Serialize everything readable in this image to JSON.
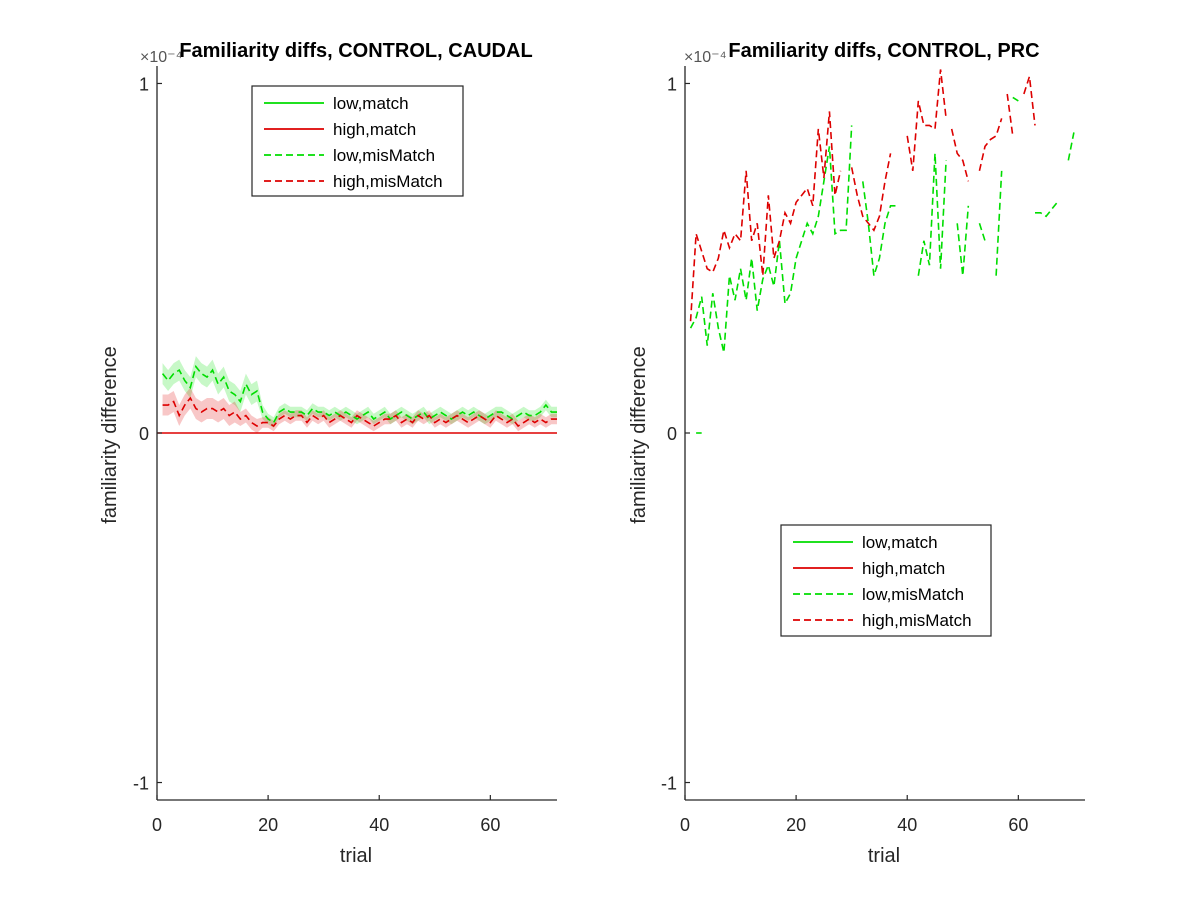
{
  "chart_data": [
    {
      "type": "line",
      "title": "Familiarity diffs, CONTROL, CAUDAL",
      "xlabel": "trial",
      "ylabel": "familiarity difference",
      "xlim": [
        0,
        72
      ],
      "ylim": [
        -1.05,
        1.05
      ],
      "xticks": [
        "0",
        "20",
        "40",
        "60"
      ],
      "yticks": [
        "-1",
        "0",
        "1"
      ],
      "y_exponent_label": "×10⁻⁴",
      "legend_position": "top-center",
      "legend": [
        "low,match",
        "high,match",
        "low,misMatch",
        "high,misMatch"
      ],
      "series": [
        {
          "name": "low,match",
          "style": "solid",
          "color": "#00dd00",
          "x": [],
          "y": []
        },
        {
          "name": "high,match",
          "style": "solid",
          "color": "#dd0000",
          "x": [
            0,
            72
          ],
          "y": [
            0,
            0
          ]
        },
        {
          "name": "low,misMatch",
          "style": "dashed",
          "color": "#00dd00",
          "band": true,
          "x": [
            1,
            2,
            3,
            4,
            5,
            6,
            7,
            8,
            9,
            10,
            11,
            12,
            13,
            14,
            15,
            16,
            17,
            18,
            19,
            20,
            21,
            22,
            23,
            24,
            25,
            26,
            27,
            28,
            29,
            30,
            31,
            32,
            33,
            34,
            35,
            36,
            37,
            38,
            39,
            40,
            41,
            42,
            43,
            44,
            45,
            46,
            47,
            48,
            49,
            50,
            51,
            52,
            53,
            54,
            55,
            56,
            57,
            58,
            59,
            60,
            61,
            62,
            63,
            64,
            65,
            66,
            67,
            68,
            69,
            70,
            71,
            72
          ],
          "y": [
            0.17,
            0.15,
            0.17,
            0.18,
            0.15,
            0.13,
            0.19,
            0.17,
            0.16,
            0.18,
            0.14,
            0.16,
            0.12,
            0.11,
            0.09,
            0.14,
            0.11,
            0.12,
            0.06,
            0.04,
            0.03,
            0.06,
            0.07,
            0.06,
            0.06,
            0.06,
            0.05,
            0.07,
            0.06,
            0.06,
            0.05,
            0.06,
            0.05,
            0.06,
            0.05,
            0.04,
            0.05,
            0.06,
            0.04,
            0.05,
            0.06,
            0.04,
            0.05,
            0.06,
            0.05,
            0.04,
            0.05,
            0.06,
            0.04,
            0.05,
            0.06,
            0.05,
            0.04,
            0.05,
            0.06,
            0.05,
            0.06,
            0.05,
            0.04,
            0.05,
            0.06,
            0.06,
            0.05,
            0.04,
            0.05,
            0.06,
            0.05,
            0.05,
            0.06,
            0.08,
            0.06,
            0.06
          ],
          "err": [
            0.03,
            0.03,
            0.03,
            0.03,
            0.03,
            0.03,
            0.03,
            0.03,
            0.03,
            0.03,
            0.03,
            0.03,
            0.03,
            0.03,
            0.03,
            0.03,
            0.03,
            0.03,
            0.02,
            0.015,
            0.015,
            0.015,
            0.015,
            0.015,
            0.015,
            0.015,
            0.015,
            0.015,
            0.015,
            0.015,
            0.015,
            0.015,
            0.015,
            0.015,
            0.015,
            0.015,
            0.015,
            0.015,
            0.015,
            0.015,
            0.015,
            0.015,
            0.015,
            0.015,
            0.015,
            0.015,
            0.015,
            0.015,
            0.015,
            0.015,
            0.015,
            0.015,
            0.015,
            0.015,
            0.015,
            0.015,
            0.015,
            0.015,
            0.015,
            0.015,
            0.015,
            0.015,
            0.015,
            0.015,
            0.015,
            0.015,
            0.015,
            0.015,
            0.015,
            0.015,
            0.015,
            0.015
          ]
        },
        {
          "name": "high,misMatch",
          "style": "dashed",
          "color": "#dd0000",
          "band": true,
          "x": [
            1,
            2,
            3,
            4,
            5,
            6,
            7,
            8,
            9,
            10,
            11,
            12,
            13,
            14,
            15,
            16,
            17,
            18,
            19,
            20,
            21,
            22,
            23,
            24,
            25,
            26,
            27,
            28,
            29,
            30,
            31,
            32,
            33,
            34,
            35,
            36,
            37,
            38,
            39,
            40,
            41,
            42,
            43,
            44,
            45,
            46,
            47,
            48,
            49,
            50,
            51,
            52,
            53,
            54,
            55,
            56,
            57,
            58,
            59,
            60,
            61,
            62,
            63,
            64,
            65,
            66,
            67,
            68,
            69,
            70,
            71,
            72
          ],
          "y": [
            0.08,
            0.08,
            0.09,
            0.05,
            0.08,
            0.1,
            0.07,
            0.06,
            0.07,
            0.07,
            0.06,
            0.07,
            0.05,
            0.06,
            0.04,
            0.05,
            0.03,
            0.02,
            0.03,
            0.03,
            0.02,
            0.04,
            0.05,
            0.04,
            0.05,
            0.05,
            0.03,
            0.05,
            0.04,
            0.05,
            0.03,
            0.04,
            0.05,
            0.04,
            0.03,
            0.05,
            0.04,
            0.03,
            0.02,
            0.03,
            0.04,
            0.04,
            0.05,
            0.03,
            0.04,
            0.03,
            0.05,
            0.04,
            0.05,
            0.03,
            0.04,
            0.03,
            0.04,
            0.05,
            0.04,
            0.03,
            0.04,
            0.05,
            0.04,
            0.03,
            0.05,
            0.04,
            0.03,
            0.04,
            0.02,
            0.03,
            0.04,
            0.03,
            0.04,
            0.03,
            0.04,
            0.04
          ],
          "err": [
            0.03,
            0.03,
            0.03,
            0.03,
            0.03,
            0.03,
            0.03,
            0.03,
            0.03,
            0.03,
            0.03,
            0.03,
            0.03,
            0.03,
            0.02,
            0.02,
            0.02,
            0.02,
            0.015,
            0.015,
            0.015,
            0.015,
            0.015,
            0.015,
            0.015,
            0.015,
            0.015,
            0.015,
            0.015,
            0.015,
            0.015,
            0.015,
            0.015,
            0.015,
            0.015,
            0.015,
            0.015,
            0.015,
            0.015,
            0.015,
            0.015,
            0.015,
            0.015,
            0.015,
            0.015,
            0.015,
            0.015,
            0.015,
            0.015,
            0.015,
            0.015,
            0.015,
            0.015,
            0.015,
            0.015,
            0.015,
            0.015,
            0.015,
            0.015,
            0.015,
            0.015,
            0.015,
            0.015,
            0.015,
            0.015,
            0.015,
            0.015,
            0.015,
            0.015,
            0.015,
            0.015,
            0.015
          ]
        }
      ]
    },
    {
      "type": "line",
      "title": "Familiarity diffs, CONTROL, PRC",
      "xlabel": "trial",
      "ylabel": "familiarity difference",
      "xlim": [
        0,
        72
      ],
      "ylim": [
        -1.05,
        1.05
      ],
      "xticks": [
        "0",
        "20",
        "40",
        "60"
      ],
      "yticks": [
        "-1",
        "0",
        "1"
      ],
      "y_exponent_label": "×10⁻⁴",
      "legend_position": "bottom-center",
      "legend": [
        "low,match",
        "high,match",
        "low,misMatch",
        "high,misMatch"
      ],
      "series": [
        {
          "name": "low,match",
          "style": "solid",
          "color": "#00dd00",
          "x": [],
          "y": []
        },
        {
          "name": "high,match",
          "style": "solid",
          "color": "#dd0000",
          "x": [],
          "y": []
        },
        {
          "name": "low,misMatch",
          "style": "dashed",
          "color": "#00dd00",
          "segments": [
            {
              "x": [
                2,
                3
              ],
              "y": [
                0,
                0
              ]
            },
            {
              "x": [
                1,
                2,
                3,
                4,
                5,
                6,
                7,
                8,
                9,
                10,
                11,
                12,
                13,
                14,
                15,
                16,
                17,
                18,
                19,
                20,
                21,
                22,
                23,
                24,
                25,
                26,
                27,
                28,
                29,
                30
              ],
              "y": [
                0.3,
                0.33,
                0.39,
                0.25,
                0.4,
                0.3,
                0.23,
                0.45,
                0.38,
                0.47,
                0.38,
                0.5,
                0.35,
                0.44,
                0.48,
                0.42,
                0.55,
                0.37,
                0.4,
                0.5,
                0.55,
                0.6,
                0.57,
                0.62,
                0.72,
                0.82,
                0.57,
                0.58,
                0.58,
                0.88
              ]
            },
            {
              "x": [
                32,
                33,
                34,
                35,
                36,
                37,
                38
              ],
              "y": [
                0.72,
                0.6,
                0.45,
                0.5,
                0.6,
                0.65,
                0.65
              ]
            },
            {
              "x": [
                42,
                43,
                44,
                45,
                46,
                47
              ],
              "y": [
                0.45,
                0.55,
                0.48,
                0.8,
                0.47,
                0.78
              ]
            },
            {
              "x": [
                49,
                50,
                51
              ],
              "y": [
                0.6,
                0.45,
                0.65
              ]
            },
            {
              "x": [
                53,
                54
              ],
              "y": [
                0.6,
                0.55
              ]
            },
            {
              "x": [
                56,
                57
              ],
              "y": [
                0.45,
                0.75
              ]
            },
            {
              "x": [
                59,
                60
              ],
              "y": [
                0.96,
                0.95
              ]
            },
            {
              "x": [
                63,
                64,
                65,
                66,
                67
              ],
              "y": [
                0.63,
                0.63,
                0.62,
                0.64,
                0.66
              ]
            },
            {
              "x": [
                69,
                70
              ],
              "y": [
                0.78,
                0.86
              ]
            }
          ]
        },
        {
          "name": "high,misMatch",
          "style": "dashed",
          "color": "#dd0000",
          "segments": [
            {
              "x": [
                1,
                2,
                3,
                4,
                5,
                6,
                7,
                8,
                9,
                10,
                11,
                12,
                13,
                14,
                15,
                16,
                17,
                18,
                19,
                20,
                21,
                22,
                23,
                24,
                25,
                26,
                27,
                28
              ],
              "y": [
                0.32,
                0.57,
                0.52,
                0.47,
                0.46,
                0.5,
                0.58,
                0.53,
                0.57,
                0.55,
                0.75,
                0.55,
                0.6,
                0.45,
                0.68,
                0.5,
                0.55,
                0.63,
                0.6,
                0.66,
                0.68,
                0.7,
                0.65,
                0.87,
                0.73,
                0.92,
                0.68,
                0.75
              ]
            },
            {
              "x": [
                30,
                31,
                32,
                33,
                34,
                35,
                36,
                37
              ],
              "y": [
                0.76,
                0.68,
                0.62,
                0.6,
                0.58,
                0.62,
                0.72,
                0.8
              ]
            },
            {
              "x": [
                40,
                41,
                42,
                43,
                44,
                45,
                46,
                47
              ],
              "y": [
                0.85,
                0.75,
                0.95,
                0.88,
                0.88,
                0.87,
                1.04,
                0.9
              ]
            },
            {
              "x": [
                48,
                49,
                50,
                51
              ],
              "y": [
                0.87,
                0.8,
                0.78,
                0.72
              ]
            },
            {
              "x": [
                53,
                54,
                55,
                56,
                57
              ],
              "y": [
                0.75,
                0.82,
                0.84,
                0.85,
                0.9
              ]
            },
            {
              "x": [
                58,
                59
              ],
              "y": [
                0.97,
                0.85
              ]
            },
            {
              "x": [
                61,
                62,
                63
              ],
              "y": [
                0.97,
                1.02,
                0.88
              ]
            }
          ]
        }
      ]
    }
  ]
}
